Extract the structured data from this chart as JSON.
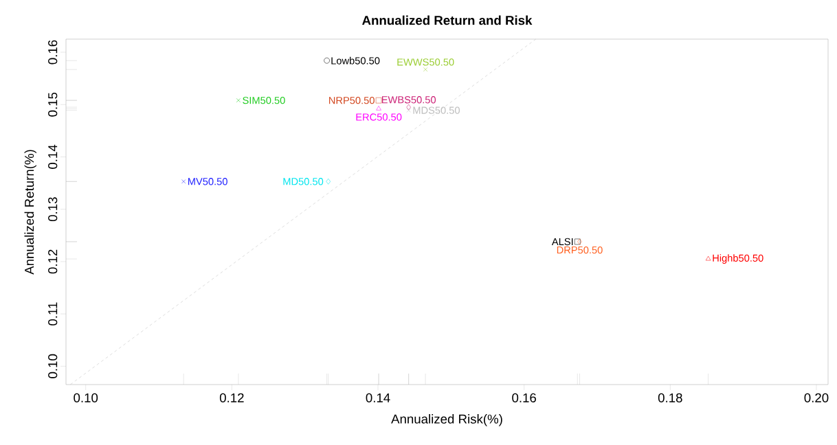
{
  "chart_data": {
    "type": "scatter",
    "title": "Annualized Return and Risk",
    "xlabel": "Annualized Risk(%)",
    "ylabel": "Annualized Return(%)",
    "xlim": [
      0.0973,
      0.2016
    ],
    "ylim": [
      0.0965,
      0.1625
    ],
    "xticks": [
      {
        "value": 0.1,
        "label": "0.10"
      },
      {
        "value": 0.12,
        "label": "0.12"
      },
      {
        "value": 0.14,
        "label": "0.14"
      },
      {
        "value": 0.16,
        "label": "0.16"
      },
      {
        "value": 0.18,
        "label": "0.18"
      },
      {
        "value": 0.2,
        "label": "0.20"
      }
    ],
    "yticks": [
      {
        "value": 0.1,
        "label": "0.10"
      },
      {
        "value": 0.11,
        "label": "0.11"
      },
      {
        "value": 0.12,
        "label": "0.12"
      },
      {
        "value": 0.13,
        "label": "0.13"
      },
      {
        "value": 0.14,
        "label": "0.14"
      },
      {
        "value": 0.15,
        "label": "0.15"
      },
      {
        "value": 0.16,
        "label": "0.16"
      }
    ],
    "grid": false,
    "series": [
      {
        "name": "Lowb50.50",
        "color": "#000000",
        "marker": "circle",
        "x": [
          0.133
        ],
        "values": [
          0.1584
        ]
      },
      {
        "name": "EWWS50.50",
        "color": "#9acd32",
        "marker": "cross",
        "x": [
          0.1465
        ],
        "values": [
          0.1567
        ]
      },
      {
        "name": "SIM50.50",
        "color": "#22cc22",
        "marker": "cross",
        "x": [
          0.1209
        ],
        "values": [
          0.1508
        ]
      },
      {
        "name": "NRP50.50",
        "color": "#d2461e",
        "marker": "square",
        "x": [
          0.1401
        ],
        "values": [
          0.1508
        ]
      },
      {
        "name": "EWBS50.50",
        "color": "#cc2277",
        "marker": "diamond",
        "x": [
          0.1442
        ],
        "values": [
          0.1495
        ]
      },
      {
        "name": "ERC50.50",
        "color": "#ff00ff",
        "marker": "triangle",
        "x": [
          0.1401
        ],
        "values": [
          0.1492
        ]
      },
      {
        "name": "MDS50.50",
        "color": "#bebebe",
        "marker": "cross",
        "x": [
          0.1442
        ],
        "values": [
          0.1489
        ]
      },
      {
        "name": "MV50.50",
        "color": "#2222ff",
        "marker": "cross",
        "x": [
          0.1134
        ],
        "values": [
          0.1353
        ]
      },
      {
        "name": "MD50.50",
        "color": "#00e5ee",
        "marker": "diamond",
        "x": [
          0.1332
        ],
        "values": [
          0.1353
        ]
      },
      {
        "name": "ALSI",
        "color": "#000000",
        "marker": "square",
        "x": [
          0.1673
        ],
        "values": [
          0.1238
        ]
      },
      {
        "name": "DRP50.50",
        "color": "#ff6020",
        "marker": "diamond",
        "x": [
          0.1676
        ],
        "values": [
          0.1238
        ]
      },
      {
        "name": "Highb50.50",
        "color": "#ff0000",
        "marker": "triangle",
        "x": [
          0.1852
        ],
        "values": [
          0.1205
        ]
      },
      {
        "type": "line",
        "color": "#bebebe",
        "line_style": "dashed",
        "marker": "none",
        "x": [
          0.0979,
          0.1616
        ],
        "values": [
          0.0965,
          0.1625
        ]
      }
    ]
  }
}
